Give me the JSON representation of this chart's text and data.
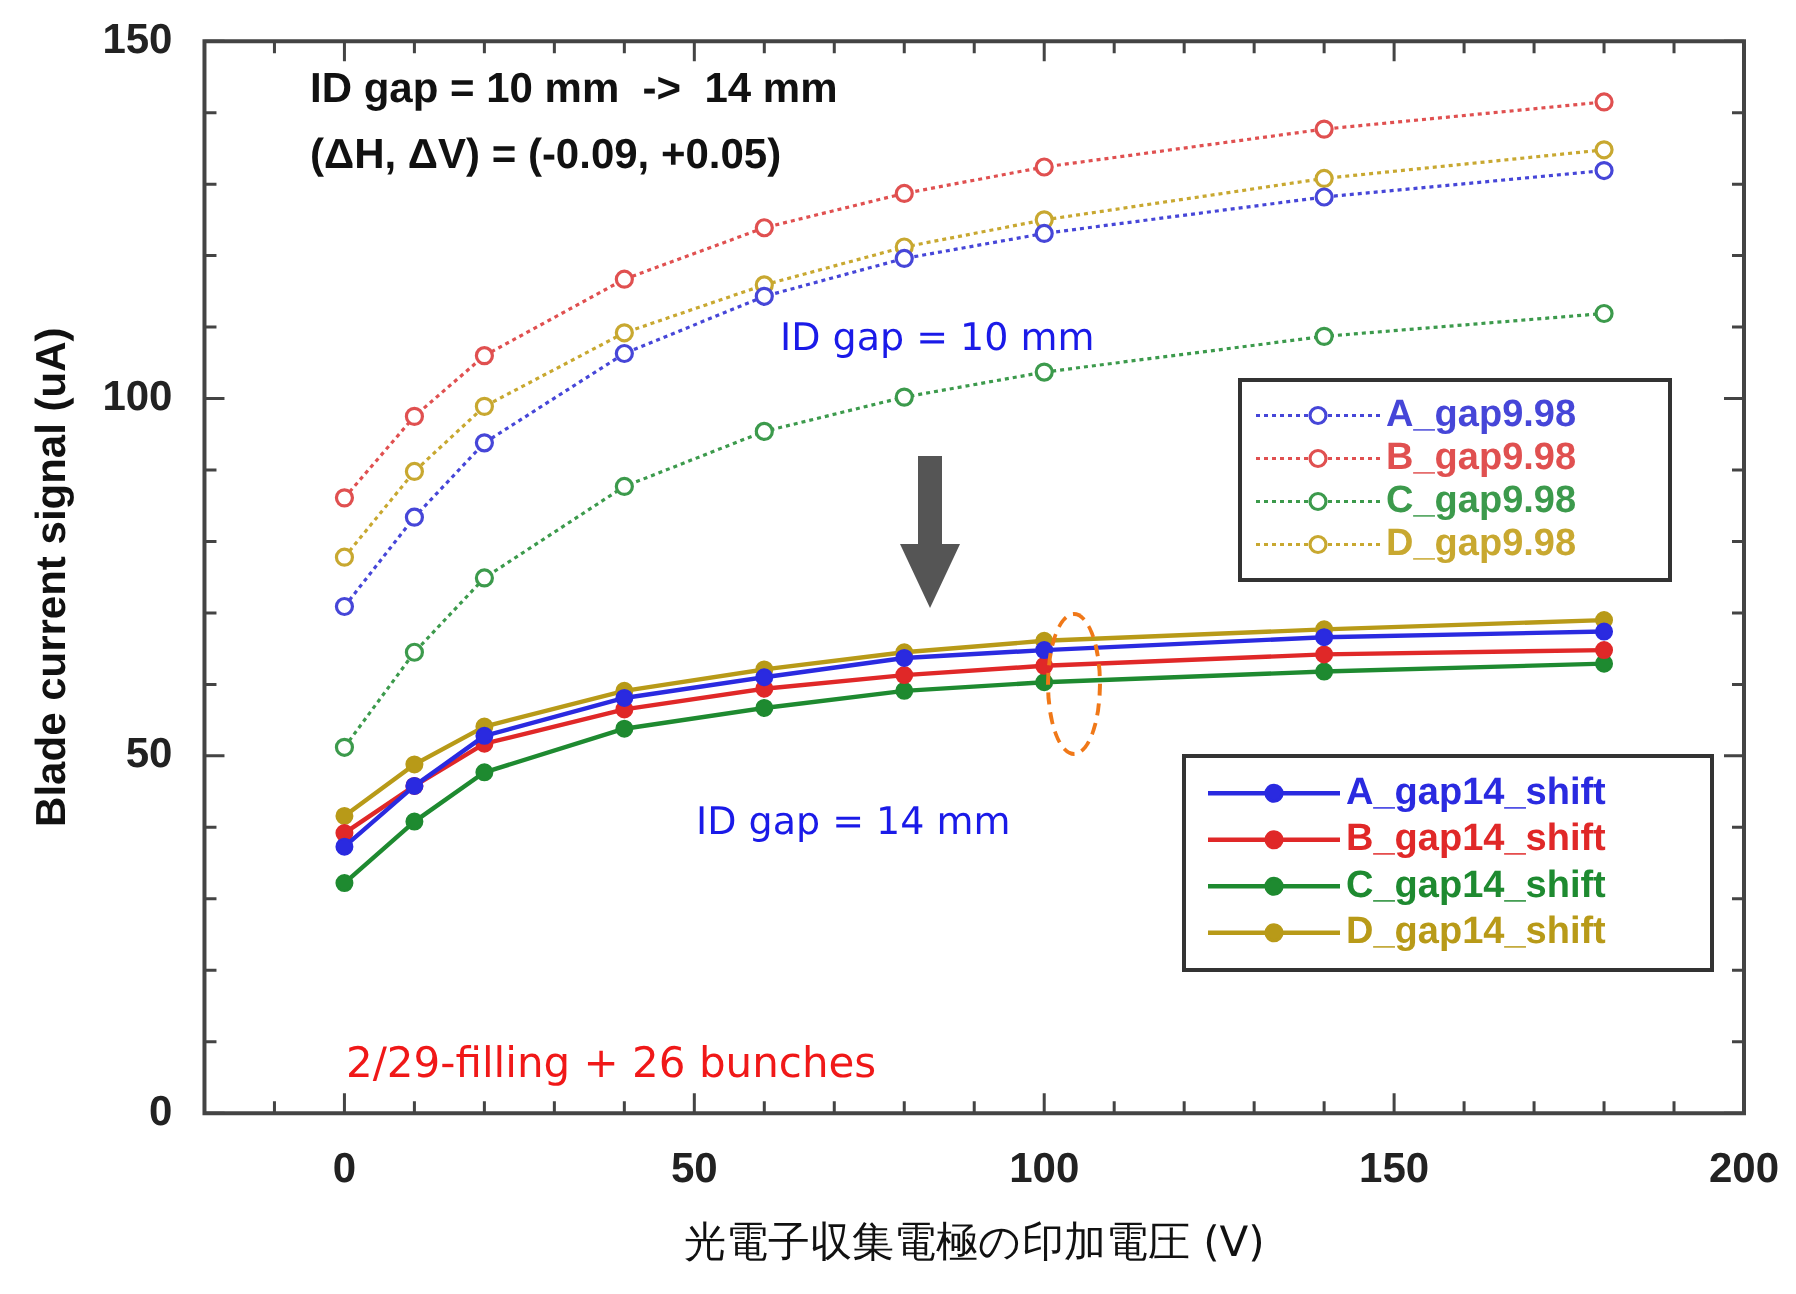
{
  "chart_data": {
    "type": "line",
    "xlabel": "光電子収集電極の印加電圧 (V)",
    "ylabel": "Blade current signal (uA)",
    "x": [
      0,
      10,
      20,
      40,
      60,
      80,
      100,
      140,
      180
    ],
    "xlim": [
      -20,
      200
    ],
    "xticks": [
      {
        "value": -10,
        "label": null
      },
      0,
      {
        "value": 10,
        "label": null
      },
      {
        "value": 20,
        "label": null
      },
      {
        "value": 30,
        "label": null
      },
      {
        "value": 40,
        "label": null
      },
      50,
      {
        "value": 60,
        "label": null
      },
      {
        "value": 70,
        "label": null
      },
      {
        "value": 80,
        "label": null
      },
      {
        "value": 90,
        "label": null
      },
      100,
      {
        "value": 110,
        "label": null
      },
      {
        "value": 120,
        "label": null
      },
      {
        "value": 130,
        "label": null
      },
      {
        "value": 140,
        "label": null
      },
      150,
      {
        "value": 160,
        "label": null
      },
      {
        "value": 170,
        "label": null
      },
      {
        "value": 180,
        "label": null
      },
      {
        "value": 190,
        "label": null
      },
      200
    ],
    "ylim": [
      0,
      150
    ],
    "yticks": [
      0,
      {
        "value": 10,
        "label": null
      },
      {
        "value": 20,
        "label": null
      },
      {
        "value": 30,
        "label": null
      },
      {
        "value": 40,
        "label": null
      },
      50,
      {
        "value": 60,
        "label": null
      },
      {
        "value": 70,
        "label": null
      },
      {
        "value": 80,
        "label": null
      },
      {
        "value": 90,
        "label": null
      },
      100,
      {
        "value": 110,
        "label": null
      },
      {
        "value": 120,
        "label": null
      },
      {
        "value": 130,
        "label": null
      },
      {
        "value": 140,
        "label": null
      },
      150
    ],
    "grid": false,
    "legend": "right",
    "marker": "circle",
    "series": [
      {
        "name": "A_gap9.98",
        "color": "#4646d8",
        "line_style": "dotted",
        "values": [
          70.9,
          83.4,
          93.8,
          106.3,
          114.3,
          119.6,
          123.1,
          128.2,
          131.9
        ]
      },
      {
        "name": "B_gap9.98",
        "color": "#e05050",
        "line_style": "dotted",
        "values": [
          86.1,
          97.5,
          106.0,
          116.7,
          123.9,
          128.7,
          132.4,
          137.7,
          141.5
        ]
      },
      {
        "name": "C_gap9.98",
        "color": "#3c9a4c",
        "line_style": "dotted",
        "values": [
          51.2,
          64.5,
          74.9,
          87.7,
          95.4,
          100.2,
          103.7,
          108.7,
          111.9
        ]
      },
      {
        "name": "D_gap9.98",
        "color": "#c8a830",
        "line_style": "dotted",
        "values": [
          77.8,
          89.8,
          98.9,
          109.2,
          115.9,
          121.2,
          125.0,
          130.8,
          134.8
        ]
      },
      {
        "name": "A_gap14_shift",
        "color": "#2a2ae0",
        "line_style": "solid",
        "values": [
          37.3,
          45.8,
          52.8,
          58.1,
          61.0,
          63.7,
          64.8,
          66.6,
          67.4
        ]
      },
      {
        "name": "B_gap14_shift",
        "color": "#e02828",
        "line_style": "solid",
        "values": [
          39.2,
          45.8,
          51.7,
          56.5,
          59.4,
          61.3,
          62.6,
          64.2,
          64.8
        ]
      },
      {
        "name": "C_gap14_shift",
        "color": "#1e8a30",
        "line_style": "solid",
        "values": [
          32.2,
          40.8,
          47.7,
          53.8,
          56.7,
          59.1,
          60.3,
          61.8,
          62.9
        ]
      },
      {
        "name": "D_gap14_shift",
        "color": "#b89a18",
        "line_style": "solid",
        "values": [
          41.6,
          48.8,
          54.1,
          59.1,
          62.1,
          64.5,
          66.1,
          67.7,
          69.0
        ]
      }
    ],
    "annotations": [
      "ID gap = 10 mm  ->  14 mm",
      "(ΔH, ΔV) = (-0.09, +0.05)",
      "ID gap = 10 mm",
      "ID gap = 14 mm",
      "2/29-filling + 26 bunches"
    ]
  }
}
